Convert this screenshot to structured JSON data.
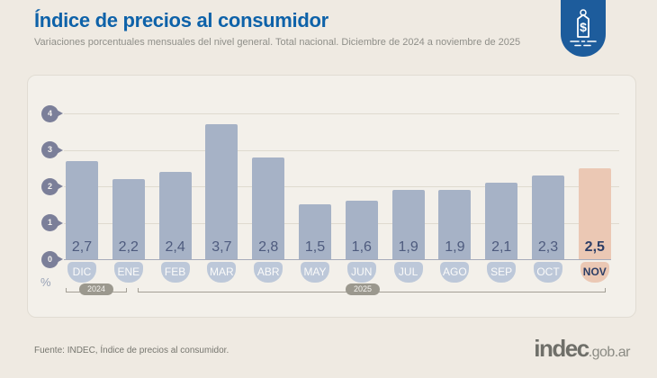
{
  "header": {
    "title": "Índice de precios al consumidor",
    "subtitle": "Variaciones porcentuales mensuales del nivel general. Total nacional. Diciembre de 2024 a noviembre de 2025",
    "badge_icon": "price-tag-dollar-icon",
    "badge_color": "#1d5c9c"
  },
  "chart_data": {
    "type": "bar",
    "title": "Índice de precios al consumidor",
    "categories": [
      "DIC",
      "ENE",
      "FEB",
      "MAR",
      "ABR",
      "MAY",
      "JUN",
      "JUL",
      "AGO",
      "SEP",
      "OCT",
      "NOV"
    ],
    "values": [
      2.7,
      2.2,
      2.4,
      3.7,
      2.8,
      1.5,
      1.6,
      1.9,
      1.9,
      2.1,
      2.3,
      2.5
    ],
    "value_labels": [
      "2,7",
      "2,2",
      "2,4",
      "3,7",
      "2,8",
      "1,5",
      "1,6",
      "1,9",
      "1,9",
      "2,1",
      "2,3",
      "2,5"
    ],
    "highlight_index": 11,
    "ylabel": "%",
    "ylim": [
      0,
      4
    ],
    "yticks": [
      0,
      1,
      2,
      3,
      4
    ],
    "grid": true,
    "legend": "none",
    "year_groups": [
      {
        "label": "2024",
        "from": "DIC",
        "to": "DIC"
      },
      {
        "label": "2025",
        "from": "ENE",
        "to": "NOV"
      }
    ],
    "colors": {
      "bar": "#a6b2c6",
      "bar_highlight": "#ebc8b4",
      "value_text": "#4e5b7e",
      "value_text_highlight": "#2d3e66",
      "month_pill": "#bdc8d9",
      "axis_pin": "#7b7f99",
      "gridline": "#dfdacf"
    }
  },
  "footer": {
    "source": "Fuente: INDEC, Índice de precios al consumidor.",
    "logo_text": "indec",
    "logo_suffix": ".gob.ar"
  }
}
